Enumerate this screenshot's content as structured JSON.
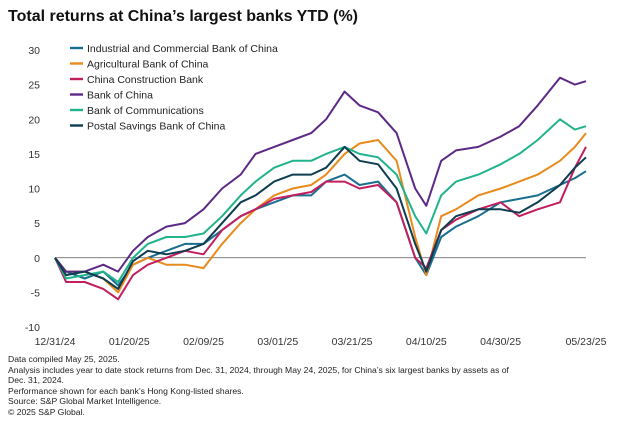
{
  "title": "Total returns at China’s largest banks YTD (%)",
  "notes": [
    "Data compiled May 25, 2025.",
    "Analysis includes year to date stock returns from Dec. 31, 2024, through May 24, 2025, for China’s six largest banks by assets as of",
    "Dec. 31, 2024.",
    "Performance shown for each bank’s Hong Kong-listed shares.",
    "Source: S&P Global Market Intelligence.",
    "© 2025 S&P Global."
  ],
  "chart_data": {
    "type": "line",
    "title": "Total returns at China’s largest banks YTD (%)",
    "x_axis": {
      "type": "date",
      "tick_labels": [
        "12/31/24",
        "01/20/25",
        "02/09/25",
        "03/01/25",
        "03/21/25",
        "04/10/25",
        "04/30/25",
        "05/23/25"
      ]
    },
    "y_axis": {
      "range": [
        -10,
        30
      ],
      "ticks": [
        -10,
        -5,
        0,
        5,
        10,
        15,
        20,
        25,
        30
      ]
    },
    "grid": false,
    "legend": "top-left",
    "series": [
      {
        "name": "Industrial and Commercial Bank of China",
        "color": "#1a6e8f",
        "points": [
          [
            "12/31/24",
            0
          ],
          [
            "01/03/25",
            -2
          ],
          [
            "01/08/25",
            -3
          ],
          [
            "01/13/25",
            -2
          ],
          [
            "01/17/25",
            -4
          ],
          [
            "01/21/25",
            -1
          ],
          [
            "01/25/25",
            0
          ],
          [
            "01/30/25",
            1
          ],
          [
            "02/04/25",
            2
          ],
          [
            "02/09/25",
            2
          ],
          [
            "02/14/25",
            4
          ],
          [
            "02/19/25",
            6
          ],
          [
            "02/23/25",
            7
          ],
          [
            "02/28/25",
            8
          ],
          [
            "03/05/25",
            9
          ],
          [
            "03/10/25",
            9
          ],
          [
            "03/14/25",
            11
          ],
          [
            "03/19/25",
            12
          ],
          [
            "03/23/25",
            10.5
          ],
          [
            "03/28/25",
            11
          ],
          [
            "04/02/25",
            8
          ],
          [
            "04/07/25",
            0
          ],
          [
            "04/10/25",
            -2.5
          ],
          [
            "04/14/25",
            3
          ],
          [
            "04/18/25",
            4.5
          ],
          [
            "04/24/25",
            6
          ],
          [
            "04/30/25",
            8
          ],
          [
            "05/05/25",
            8.5
          ],
          [
            "05/10/25",
            9
          ],
          [
            "05/16/25",
            10.5
          ],
          [
            "05/20/25",
            11.5
          ],
          [
            "05/23/25",
            12.5
          ]
        ]
      },
      {
        "name": "Agricultural Bank of China",
        "color": "#e98a1c",
        "points": [
          [
            "12/31/24",
            0
          ],
          [
            "01/03/25",
            -2
          ],
          [
            "01/08/25",
            -2
          ],
          [
            "01/13/25",
            -3
          ],
          [
            "01/17/25",
            -5
          ],
          [
            "01/21/25",
            -1
          ],
          [
            "01/25/25",
            0
          ],
          [
            "01/30/25",
            -1
          ],
          [
            "02/04/25",
            -1
          ],
          [
            "02/09/25",
            -1.5
          ],
          [
            "02/14/25",
            2
          ],
          [
            "02/19/25",
            5
          ],
          [
            "02/23/25",
            7
          ],
          [
            "02/28/25",
            9
          ],
          [
            "03/05/25",
            10
          ],
          [
            "03/10/25",
            10.5
          ],
          [
            "03/14/25",
            12
          ],
          [
            "03/19/25",
            15
          ],
          [
            "03/23/25",
            16.5
          ],
          [
            "03/28/25",
            17
          ],
          [
            "04/02/25",
            14
          ],
          [
            "04/07/25",
            3
          ],
          [
            "04/10/25",
            -2.5
          ],
          [
            "04/14/25",
            6
          ],
          [
            "04/18/25",
            7
          ],
          [
            "04/24/25",
            9
          ],
          [
            "04/30/25",
            10
          ],
          [
            "05/05/25",
            11
          ],
          [
            "05/10/25",
            12
          ],
          [
            "05/16/25",
            14
          ],
          [
            "05/20/25",
            16
          ],
          [
            "05/23/25",
            18
          ]
        ]
      },
      {
        "name": "China Construction Bank",
        "color": "#c21f5e",
        "points": [
          [
            "12/31/24",
            0
          ],
          [
            "01/03/25",
            -3.5
          ],
          [
            "01/08/25",
            -3.5
          ],
          [
            "01/13/25",
            -4.5
          ],
          [
            "01/17/25",
            -6
          ],
          [
            "01/21/25",
            -2.5
          ],
          [
            "01/25/25",
            -1
          ],
          [
            "01/30/25",
            0
          ],
          [
            "02/04/25",
            1
          ],
          [
            "02/09/25",
            0.5
          ],
          [
            "02/14/25",
            4
          ],
          [
            "02/19/25",
            6
          ],
          [
            "02/23/25",
            7
          ],
          [
            "02/28/25",
            8.5
          ],
          [
            "03/05/25",
            9
          ],
          [
            "03/10/25",
            9.5
          ],
          [
            "03/14/25",
            11
          ],
          [
            "03/19/25",
            11
          ],
          [
            "03/23/25",
            10
          ],
          [
            "03/28/25",
            10.5
          ],
          [
            "04/02/25",
            8
          ],
          [
            "04/07/25",
            0
          ],
          [
            "04/10/25",
            -1.5
          ],
          [
            "04/14/25",
            4
          ],
          [
            "04/18/25",
            5.5
          ],
          [
            "04/24/25",
            7
          ],
          [
            "04/30/25",
            8
          ],
          [
            "05/05/25",
            6
          ],
          [
            "05/10/25",
            7
          ],
          [
            "05/16/25",
            8
          ],
          [
            "05/20/25",
            13
          ],
          [
            "05/23/25",
            16
          ]
        ]
      },
      {
        "name": "Bank of China",
        "color": "#5c2a86",
        "points": [
          [
            "12/31/24",
            0
          ],
          [
            "01/03/25",
            -2
          ],
          [
            "01/08/25",
            -2
          ],
          [
            "01/13/25",
            -1
          ],
          [
            "01/17/25",
            -2
          ],
          [
            "01/21/25",
            1
          ],
          [
            "01/25/25",
            3
          ],
          [
            "01/30/25",
            4.5
          ],
          [
            "02/04/25",
            5
          ],
          [
            "02/09/25",
            7
          ],
          [
            "02/14/25",
            10
          ],
          [
            "02/19/25",
            12
          ],
          [
            "02/23/25",
            15
          ],
          [
            "02/28/25",
            16
          ],
          [
            "03/05/25",
            17
          ],
          [
            "03/10/25",
            18
          ],
          [
            "03/14/25",
            20
          ],
          [
            "03/19/25",
            24
          ],
          [
            "03/23/25",
            22
          ],
          [
            "03/28/25",
            21
          ],
          [
            "04/02/25",
            18
          ],
          [
            "04/07/25",
            10
          ],
          [
            "04/10/25",
            7.5
          ],
          [
            "04/14/25",
            14
          ],
          [
            "04/18/25",
            15.5
          ],
          [
            "04/24/25",
            16
          ],
          [
            "04/30/25",
            17.5
          ],
          [
            "05/05/25",
            19
          ],
          [
            "05/10/25",
            22
          ],
          [
            "05/16/25",
            26
          ],
          [
            "05/20/25",
            25
          ],
          [
            "05/23/25",
            25.5
          ]
        ]
      },
      {
        "name": "Bank of Communications",
        "color": "#21b38c",
        "points": [
          [
            "12/31/24",
            0
          ],
          [
            "01/03/25",
            -3
          ],
          [
            "01/08/25",
            -2.5
          ],
          [
            "01/13/25",
            -2
          ],
          [
            "01/17/25",
            -3.5
          ],
          [
            "01/21/25",
            0
          ],
          [
            "01/25/25",
            2
          ],
          [
            "01/30/25",
            3
          ],
          [
            "02/04/25",
            3
          ],
          [
            "02/09/25",
            3.5
          ],
          [
            "02/14/25",
            6
          ],
          [
            "02/19/25",
            9
          ],
          [
            "02/23/25",
            11
          ],
          [
            "02/28/25",
            13
          ],
          [
            "03/05/25",
            14
          ],
          [
            "03/10/25",
            14
          ],
          [
            "03/14/25",
            15
          ],
          [
            "03/19/25",
            16
          ],
          [
            "03/23/25",
            15
          ],
          [
            "03/28/25",
            14.5
          ],
          [
            "04/02/25",
            12
          ],
          [
            "04/07/25",
            6
          ],
          [
            "04/10/25",
            3.5
          ],
          [
            "04/14/25",
            9
          ],
          [
            "04/18/25",
            11
          ],
          [
            "04/24/25",
            12
          ],
          [
            "04/30/25",
            13.5
          ],
          [
            "05/05/25",
            15
          ],
          [
            "05/10/25",
            17
          ],
          [
            "05/16/25",
            20
          ],
          [
            "05/20/25",
            18.5
          ],
          [
            "05/23/25",
            19
          ]
        ]
      },
      {
        "name": "Postal Savings Bank of China",
        "color": "#0e3d52",
        "points": [
          [
            "12/31/24",
            0
          ],
          [
            "01/03/25",
            -2.5
          ],
          [
            "01/08/25",
            -2
          ],
          [
            "01/13/25",
            -3
          ],
          [
            "01/17/25",
            -4.5
          ],
          [
            "01/21/25",
            -0.5
          ],
          [
            "01/25/25",
            1
          ],
          [
            "01/30/25",
            0.5
          ],
          [
            "02/04/25",
            1
          ],
          [
            "02/09/25",
            2
          ],
          [
            "02/14/25",
            5
          ],
          [
            "02/19/25",
            8
          ],
          [
            "02/23/25",
            9
          ],
          [
            "02/28/25",
            11
          ],
          [
            "03/05/25",
            12
          ],
          [
            "03/10/25",
            12
          ],
          [
            "03/14/25",
            13
          ],
          [
            "03/19/25",
            16
          ],
          [
            "03/23/25",
            14
          ],
          [
            "03/28/25",
            13.5
          ],
          [
            "04/02/25",
            10
          ],
          [
            "04/07/25",
            2
          ],
          [
            "04/10/25",
            -2
          ],
          [
            "04/14/25",
            4
          ],
          [
            "04/18/25",
            6
          ],
          [
            "04/24/25",
            7
          ],
          [
            "04/30/25",
            7
          ],
          [
            "05/05/25",
            6.5
          ],
          [
            "05/10/25",
            8
          ],
          [
            "05/16/25",
            10.5
          ],
          [
            "05/20/25",
            13
          ],
          [
            "05/23/25",
            14.5
          ]
        ]
      }
    ]
  }
}
